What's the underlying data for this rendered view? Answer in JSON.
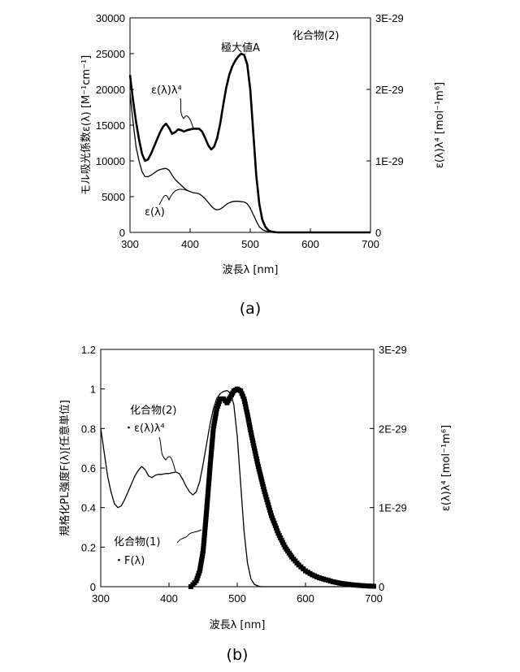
{
  "panel_a": {
    "caption": "(a)",
    "compound_label": "化合物(2)",
    "peak_annotation": "極大値A",
    "curve_labels": {
      "eps_lambda4": "ε(λ)λ⁴",
      "eps": "ε(λ)"
    },
    "xlabel": "波長λ [nm]",
    "ylabel_left": "モル吸光係数ε(λ) [M⁻¹cm⁻¹]",
    "ylabel_right": "ε(λ)λ⁴ [mol⁻¹m⁶]",
    "x_ticks": [
      "300",
      "400",
      "500",
      "600",
      "700"
    ],
    "y_left_ticks": [
      "0",
      "5000",
      "10000",
      "15000",
      "20000",
      "25000",
      "30000"
    ],
    "y_right_ticks": [
      "0",
      "1E-29",
      "2E-29",
      "3E-29"
    ]
  },
  "panel_b": {
    "caption": "(b)",
    "label_compound2": "化合物(2)",
    "label_compound2_series": "・ε(λ)λ⁴",
    "label_compound1": "化合物(1)",
    "label_compound1_series": "・F(λ)",
    "xlabel": "波長λ [nm]",
    "ylabel_left": "規格化PL強度F(λ)[任意単位]",
    "ylabel_right": "ε(λ)λ⁴ [mol⁻¹m⁶]",
    "x_ticks": [
      "300",
      "400",
      "500",
      "600",
      "700"
    ],
    "y_left_ticks": [
      "0",
      "0.2",
      "0.4",
      "0.6",
      "0.8",
      "1",
      "1.2"
    ],
    "y_right_ticks": [
      "0",
      "1E-29",
      "2E-29",
      "3E-29"
    ]
  },
  "chart_data": [
    {
      "type": "line",
      "xlim": [
        300,
        700
      ],
      "ylim": [
        0,
        30000
      ],
      "y2lim": [
        0,
        3e-29
      ],
      "grid": false,
      "series": [
        {
          "name": "ε(λ)λ⁴",
          "axis": "right",
          "style": "thick",
          "x": [
            300,
            305,
            310,
            315,
            320,
            325,
            330,
            335,
            340,
            345,
            350,
            355,
            360,
            365,
            370,
            375,
            380,
            385,
            390,
            395,
            400,
            405,
            410,
            415,
            420,
            425,
            430,
            435,
            440,
            445,
            450,
            455,
            460,
            465,
            470,
            475,
            480,
            485,
            490,
            495,
            500,
            505,
            510,
            515,
            520,
            525,
            530,
            535,
            540,
            545,
            550,
            560,
            580,
            600,
            650,
            700
          ],
          "values": [
            2.2e-29,
            1.85e-29,
            1.55e-29,
            1.3e-29,
            1.1e-29,
            1e-29,
            1.02e-29,
            1.1e-29,
            1.2e-29,
            1.3e-29,
            1.4e-29,
            1.48e-29,
            1.52e-29,
            1.46e-29,
            1.38e-29,
            1.4e-29,
            1.44e-29,
            1.43e-29,
            1.41e-29,
            1.43e-29,
            1.44e-29,
            1.45e-29,
            1.45e-29,
            1.45e-29,
            1.41e-29,
            1.32e-29,
            1.22e-29,
            1.16e-29,
            1.2e-29,
            1.32e-29,
            1.52e-29,
            1.78e-29,
            2.02e-29,
            2.2e-29,
            2.32e-29,
            2.4e-29,
            2.46e-29,
            2.5e-29,
            2.48e-29,
            2.35e-29,
            2e-29,
            1.4e-29,
            8e-30,
            4e-30,
            1.8e-30,
            8e-31,
            3e-31,
            1e-31,
            5e-32,
            0,
            0,
            0,
            0,
            0,
            0,
            0
          ]
        },
        {
          "name": "ε(λ)",
          "axis": "left",
          "style": "thin",
          "x": [
            300,
            305,
            310,
            315,
            320,
            325,
            330,
            335,
            340,
            345,
            350,
            355,
            360,
            365,
            370,
            375,
            380,
            385,
            390,
            395,
            400,
            405,
            410,
            415,
            420,
            425,
            430,
            435,
            440,
            445,
            450,
            455,
            460,
            465,
            470,
            475,
            480,
            485,
            490,
            495,
            500,
            505,
            510,
            515,
            520,
            525,
            530,
            535,
            540,
            545,
            550,
            560,
            580,
            600,
            650,
            700
          ],
          "values": [
            19500,
            15500,
            12000,
            10000,
            8500,
            7800,
            7800,
            8000,
            8300,
            8600,
            8800,
            8900,
            8950,
            8700,
            8000,
            7400,
            7000,
            6600,
            6200,
            5900,
            5700,
            5550,
            5500,
            5400,
            5100,
            4700,
            4200,
            3700,
            3300,
            3150,
            3250,
            3550,
            3900,
            4150,
            4300,
            4350,
            4350,
            4300,
            4250,
            4000,
            3400,
            2500,
            1600,
            800,
            400,
            200,
            100,
            50,
            0,
            0,
            0,
            0,
            0,
            0,
            0,
            0
          ]
        }
      ]
    },
    {
      "type": "line",
      "xlim": [
        300,
        700
      ],
      "ylim": [
        0,
        1.2
      ],
      "y2lim": [
        0,
        3e-29
      ],
      "grid": false,
      "series": [
        {
          "name": "ε(λ)λ⁴",
          "axis": "right",
          "style": "thin",
          "x": [
            300,
            305,
            310,
            315,
            320,
            325,
            330,
            335,
            340,
            345,
            350,
            355,
            360,
            365,
            370,
            375,
            380,
            385,
            390,
            395,
            400,
            405,
            410,
            415,
            420,
            425,
            430,
            435,
            440,
            445,
            450,
            455,
            460,
            465,
            470,
            475,
            480,
            485,
            490,
            495,
            500,
            505,
            510,
            515,
            520,
            525,
            530,
            535,
            540,
            545,
            550,
            560,
            580,
            600,
            650,
            700
          ],
          "values": [
            2e-29,
            1.7e-29,
            1.4e-29,
            1.2e-29,
            1.05e-29,
            1e-29,
            1.02e-29,
            1.1e-29,
            1.2e-29,
            1.3e-29,
            1.4e-29,
            1.47e-29,
            1.52e-29,
            1.48e-29,
            1.4e-29,
            1.38e-29,
            1.41e-29,
            1.42e-29,
            1.42e-29,
            1.43e-29,
            1.43e-29,
            1.44e-29,
            1.45e-29,
            1.43e-29,
            1.36e-29,
            1.27e-29,
            1.2e-29,
            1.16e-29,
            1.2e-29,
            1.33e-29,
            1.55e-29,
            1.8e-29,
            2.05e-29,
            2.25e-29,
            2.38e-29,
            2.44e-29,
            2.47e-29,
            2.48e-29,
            2.45e-29,
            2.3e-29,
            1.9e-29,
            1.3e-29,
            7e-30,
            3e-30,
            1e-30,
            3e-31,
            1e-31,
            0,
            0,
            0,
            0,
            0,
            0,
            0,
            0,
            0
          ]
        },
        {
          "name": "F(λ)",
          "axis": "left",
          "style": "markers",
          "x": [
            432,
            435,
            440,
            445,
            450,
            455,
            460,
            465,
            470,
            475,
            480,
            485,
            490,
            495,
            500,
            505,
            510,
            515,
            520,
            530,
            540,
            550,
            560,
            570,
            580,
            590,
            600,
            610,
            620,
            630,
            640,
            650,
            660,
            670,
            680,
            690,
            700
          ],
          "values": [
            0.0,
            0.01,
            0.03,
            0.08,
            0.18,
            0.38,
            0.6,
            0.8,
            0.9,
            0.95,
            0.95,
            0.93,
            0.96,
            0.99,
            1.0,
            0.99,
            0.95,
            0.87,
            0.78,
            0.62,
            0.48,
            0.36,
            0.27,
            0.2,
            0.15,
            0.11,
            0.08,
            0.06,
            0.045,
            0.035,
            0.025,
            0.018,
            0.013,
            0.009,
            0.006,
            0.004,
            0.002
          ]
        }
      ]
    }
  ]
}
